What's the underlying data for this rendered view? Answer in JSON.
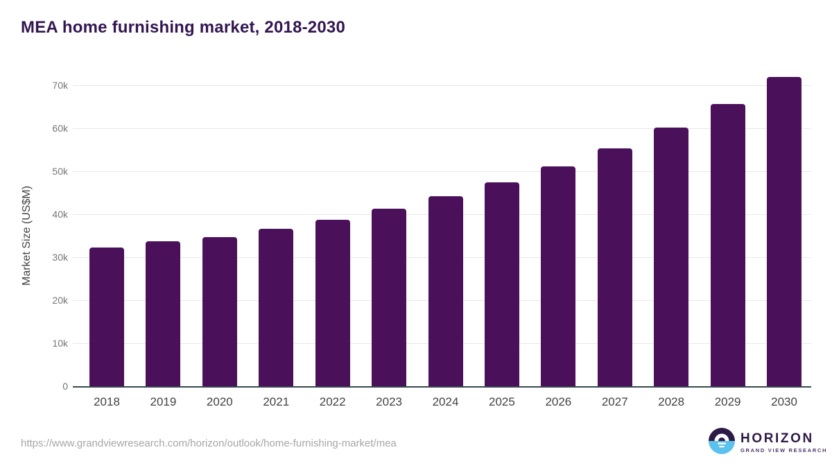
{
  "page": {
    "title": "MEA home furnishing market, 2018-2030",
    "source_url": "https://www.grandviewresearch.com/horizon/outlook/home-furnishing-market/mea"
  },
  "logo": {
    "name": "HORIZON",
    "tagline": "GRAND VIEW RESEARCH"
  },
  "chart_data": {
    "type": "bar",
    "title": "MEA home furnishing market, 2018-2030",
    "categories": [
      "2018",
      "2019",
      "2020",
      "2021",
      "2022",
      "2023",
      "2024",
      "2025",
      "2026",
      "2027",
      "2028",
      "2029",
      "2030"
    ],
    "values": [
      32300,
      33700,
      34700,
      36600,
      38700,
      41300,
      44200,
      47400,
      51100,
      55300,
      60100,
      65600,
      71900
    ],
    "xlabel": "",
    "ylabel": "Market Size (US$M)",
    "ylim": [
      0,
      70000
    ],
    "ytick_interval": 10000,
    "ytick_labels": [
      "0",
      "10k",
      "20k",
      "30k",
      "40k",
      "50k",
      "60k",
      "70k"
    ],
    "grid": true,
    "legend": false,
    "bar_color": "#4A115A"
  },
  "colors": {
    "title": "#331550",
    "bar": "#4A115A",
    "axis_line": "#37474F",
    "gridline": "#E8E8E8",
    "ytick_text": "#757575",
    "xtick_text": "#424242",
    "axis_title_text": "#424242",
    "url_text": "#A6A6A6",
    "logo_dark": "#2E1A47",
    "logo_blue": "#5BC2EE",
    "logo_tagline": "#4B3768"
  }
}
